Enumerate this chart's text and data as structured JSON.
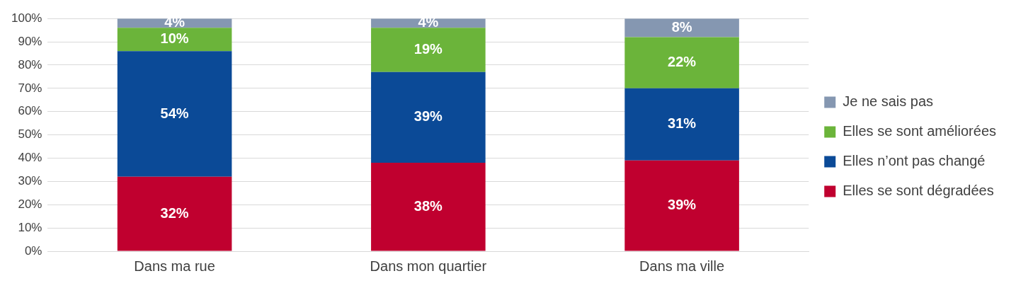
{
  "chart_data": {
    "type": "bar",
    "stacked": true,
    "categories": [
      "Dans ma rue",
      "Dans mon quartier",
      "Dans ma ville"
    ],
    "series": [
      {
        "name": "Elles se sont dégradées",
        "color": "#c0002f",
        "values": [
          32,
          38,
          39
        ],
        "value_labels": [
          "32%",
          "38%",
          "39%"
        ]
      },
      {
        "name": "Elles n’ont pas changé",
        "color": "#0b4a97",
        "values": [
          54,
          39,
          31
        ],
        "value_labels": [
          "54%",
          "39%",
          "31%"
        ]
      },
      {
        "name": "Elles se sont améliorées",
        "color": "#6bb43a",
        "values": [
          10,
          19,
          22
        ],
        "value_labels": [
          "10%",
          "19%",
          "22%"
        ]
      },
      {
        "name": "Je ne sais pas",
        "color": "#8597b1",
        "values": [
          4,
          4,
          8
        ],
        "value_labels": [
          "4%",
          "4%",
          "8%"
        ]
      }
    ],
    "ylim": [
      0,
      100
    ],
    "yticks": [
      {
        "value": 0,
        "label": "0%"
      },
      {
        "value": 10,
        "label": "10%"
      },
      {
        "value": 20,
        "label": "20%"
      },
      {
        "value": 30,
        "label": "30%"
      },
      {
        "value": 40,
        "label": "40%"
      },
      {
        "value": 50,
        "label": "50%"
      },
      {
        "value": 60,
        "label": "60%"
      },
      {
        "value": 70,
        "label": "70%"
      },
      {
        "value": 80,
        "label": "80%"
      },
      {
        "value": 90,
        "label": "90%"
      },
      {
        "value": 100,
        "label": "100%"
      }
    ],
    "grid": "y",
    "legend": "right"
  }
}
